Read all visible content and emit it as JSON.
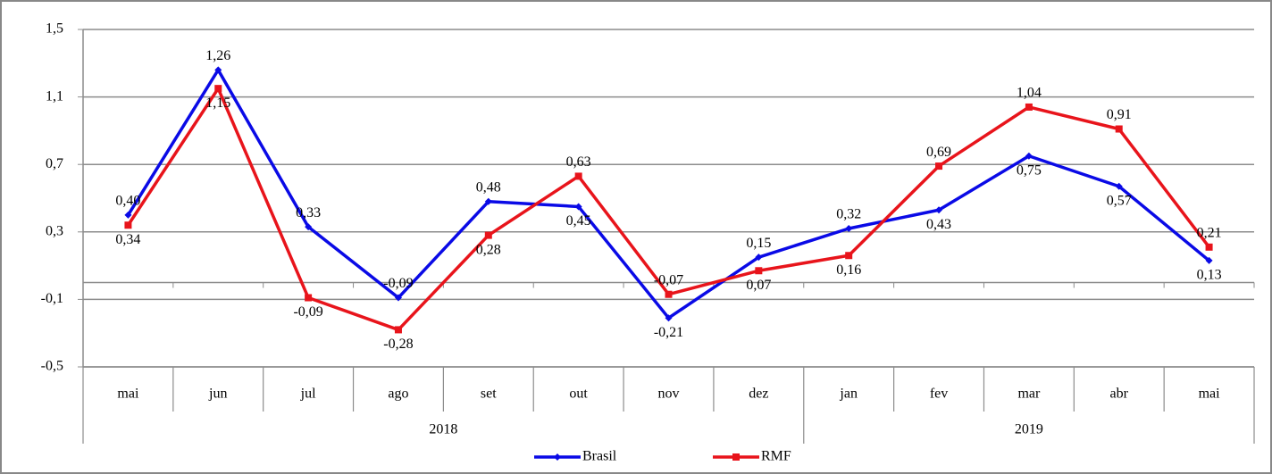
{
  "chart_data": {
    "type": "line",
    "categories": [
      "mai",
      "jun",
      "jul",
      "ago",
      "set",
      "out",
      "nov",
      "dez",
      "jan",
      "fev",
      "mar",
      "abr",
      "mai"
    ],
    "groups": [
      {
        "label": "2018",
        "count": 8
      },
      {
        "label": "2019",
        "count": 5
      }
    ],
    "series": [
      {
        "name": "Brasil",
        "color": "#0a0ae6",
        "marker": "diamond",
        "values": [
          0.4,
          1.26,
          0.33,
          -0.09,
          0.48,
          0.45,
          -0.21,
          0.15,
          0.32,
          0.43,
          0.75,
          0.57,
          0.13
        ],
        "value_labels": [
          "0,40",
          "1,26",
          "0,33",
          "-0,09",
          "0,48",
          "0,45",
          "-0,21",
          "0,15",
          "0,32",
          "0,43",
          "0,75",
          "0,57",
          "0,13"
        ]
      },
      {
        "name": "RMF",
        "color": "#e8141b",
        "marker": "square",
        "values": [
          0.34,
          1.15,
          -0.09,
          -0.28,
          0.28,
          0.63,
          -0.07,
          0.07,
          0.16,
          0.69,
          1.04,
          0.91,
          0.21
        ],
        "value_labels": [
          "0,34",
          "1,15",
          "-0,09",
          "-0,28",
          "0,28",
          "0,63",
          "-0,07",
          "0,07",
          "0,16",
          "0,69",
          "1,04",
          "0,91",
          "0,21"
        ]
      }
    ],
    "ylim": [
      -0.5,
      1.5
    ],
    "yticks": [
      {
        "value": -0.5,
        "label": "-0,5"
      },
      {
        "value": -0.1,
        "label": "-0,1"
      },
      {
        "value": 0.3,
        "label": "0,3"
      },
      {
        "value": 0.7,
        "label": "0,7"
      },
      {
        "value": 1.1,
        "label": "1,1"
      },
      {
        "value": 1.5,
        "label": "1,5"
      }
    ],
    "grid": true,
    "legend": "bottom",
    "negative_label_color": "#e8141b"
  }
}
